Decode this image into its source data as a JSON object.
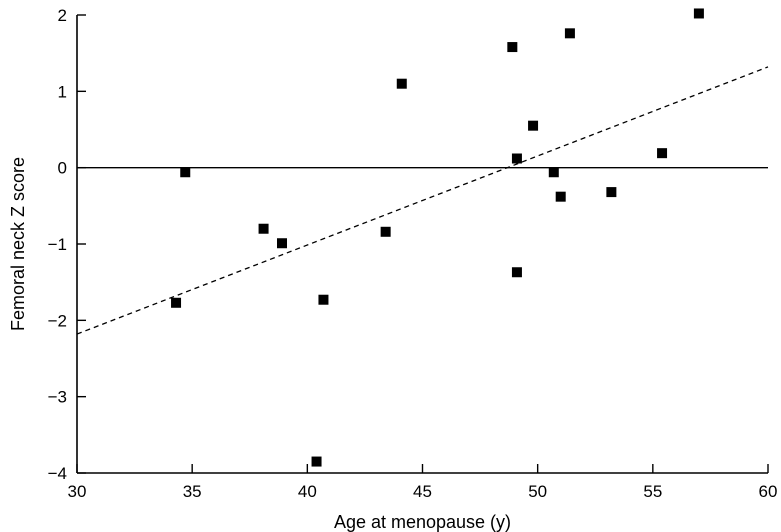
{
  "chart_data": {
    "type": "scatter",
    "xlabel": "Age at menopause (y)",
    "ylabel": "Femoral neck Z score",
    "xlim": [
      30,
      60
    ],
    "ylim": [
      -4,
      2
    ],
    "xticks": [
      30,
      35,
      40,
      45,
      50,
      55,
      60
    ],
    "yticks": [
      -4,
      -3,
      -2,
      -1,
      0,
      1,
      2
    ],
    "grid": false,
    "reference_line_y": 0,
    "trend_line": {
      "style": "dashed",
      "x": [
        30,
        60
      ],
      "y": [
        -2.18,
        1.32
      ]
    },
    "points": [
      {
        "x": 34.3,
        "y": -1.77
      },
      {
        "x": 34.7,
        "y": -0.06
      },
      {
        "x": 38.1,
        "y": -0.8
      },
      {
        "x": 38.9,
        "y": -0.99
      },
      {
        "x": 40.4,
        "y": -3.85
      },
      {
        "x": 40.7,
        "y": -1.73
      },
      {
        "x": 43.4,
        "y": -0.84
      },
      {
        "x": 44.1,
        "y": 1.1
      },
      {
        "x": 48.9,
        "y": 1.58
      },
      {
        "x": 49.1,
        "y": 0.12
      },
      {
        "x": 49.1,
        "y": -1.37
      },
      {
        "x": 49.8,
        "y": 0.55
      },
      {
        "x": 50.7,
        "y": -0.06
      },
      {
        "x": 51.0,
        "y": -0.38
      },
      {
        "x": 51.4,
        "y": 1.76
      },
      {
        "x": 53.2,
        "y": -0.32
      },
      {
        "x": 55.4,
        "y": 0.19
      },
      {
        "x": 57.0,
        "y": 2.02
      }
    ]
  }
}
